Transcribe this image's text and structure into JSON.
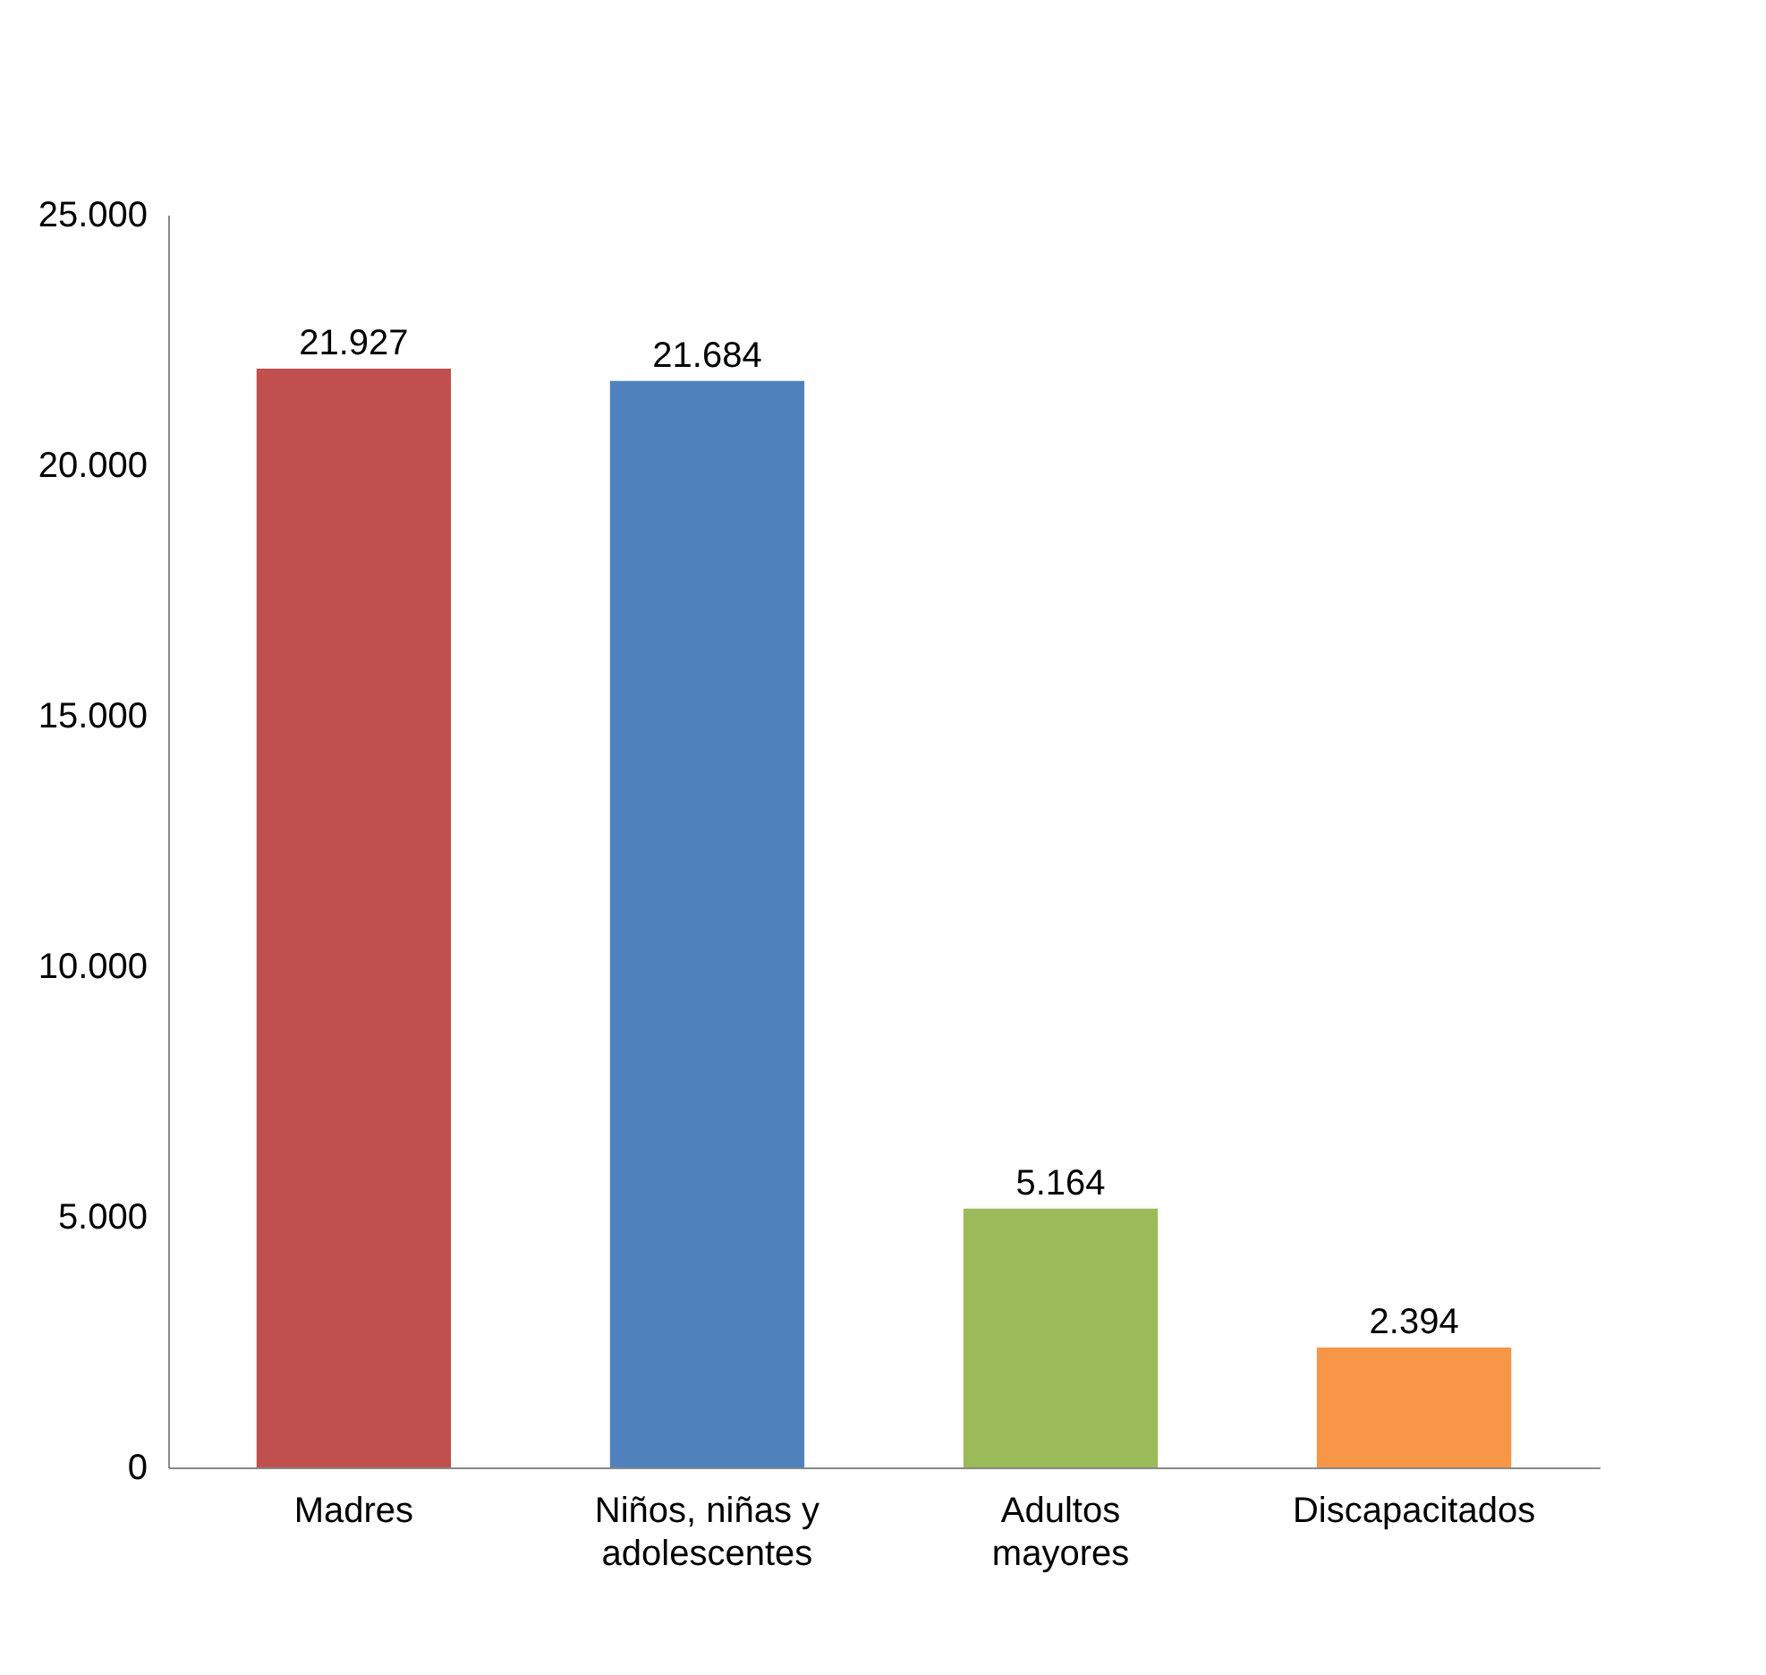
{
  "chart_data": {
    "type": "bar",
    "categories": [
      "Madres",
      "Niños, niñas y adolescentes",
      "Adultos mayores",
      "Discapacitados"
    ],
    "values": [
      21927,
      21684,
      5164,
      2394
    ],
    "colors": [
      "#c0504d",
      "#4f81bd",
      "#9bbb59",
      "#f79646"
    ],
    "value_labels": [
      "21.927",
      "21.684",
      "5.164",
      "2.394"
    ],
    "ylim": [
      0,
      25000
    ],
    "yticks": [
      0,
      {
        "value": 5000,
        "label": "5.000"
      },
      {
        "value": 10000,
        "label": "10.000"
      },
      {
        "value": 15000,
        "label": "15.000"
      },
      {
        "value": 20000,
        "label": "20.000"
      },
      {
        "value": 25000,
        "label": "25.000"
      }
    ],
    "grid": false
  }
}
